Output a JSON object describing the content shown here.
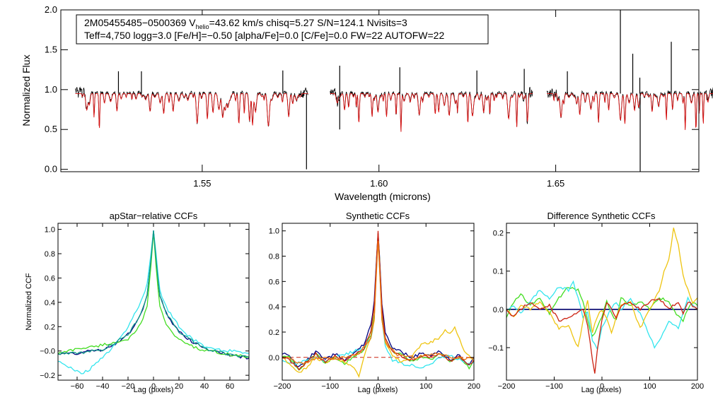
{
  "header": {
    "line1_prefix": "2M05455485−0500369  V",
    "line1_sub": "helio",
    "line1_suffix": "=43.62 km/s  chisq=5.27  S/N=124.1  Nvisits=3",
    "line2": "Teff=4,750 logg=3.0 [Fe/H]=−0.50 [alpha/Fe]=0.0 [C/Fe]=0.0 FW=22 AUTOFW=22"
  },
  "colors": {
    "observed": "#000000",
    "model": "#dd1111",
    "navy": "#00007f",
    "green": "#44dd22",
    "cyan": "#33e5ee",
    "teal": "#119988",
    "gold": "#eec411",
    "red_ccf": "#cc2211",
    "orange": "#ee7711"
  },
  "chart_data": [
    {
      "id": "spectrum",
      "type": "line",
      "title": "",
      "xlabel": "Wavelength (microns)",
      "ylabel": "Normalized Flux",
      "xlim": [
        1.51,
        1.6905
      ],
      "ylim": [
        -0.03,
        2.0
      ],
      "xticks": [
        1.55,
        1.6,
        1.65
      ],
      "xtick_labels": [
        "1.55",
        "1.60",
        "1.65"
      ],
      "yticks": [
        0.0,
        0.5,
        1.0,
        1.5,
        2.0
      ],
      "ytick_labels": [
        "0.0",
        "0.5",
        "1.0",
        "1.5",
        "2.0"
      ],
      "chip_ranges": [
        [
          1.5141,
          1.58
        ],
        [
          1.5862,
          1.6435
        ],
        [
          1.6475,
          1.6955
        ]
      ],
      "continuum_level": 0.95,
      "series": [
        {
          "name": "Observed spectrum",
          "color_key": "observed"
        },
        {
          "name": "Best-fit model",
          "color_key": "model"
        }
      ],
      "notable_features": [
        {
          "x": 1.5263,
          "y": 1.23
        },
        {
          "x": 1.5328,
          "y": 1.23
        },
        {
          "x": 1.5728,
          "y": 1.24
        },
        {
          "x": 1.5889,
          "y": 1.3
        },
        {
          "x": 1.6059,
          "y": 1.28
        },
        {
          "x": 1.6277,
          "y": 1.24
        },
        {
          "x": 1.6411,
          "y": 1.26
        },
        {
          "x": 1.6533,
          "y": 1.23
        },
        {
          "x": 1.6683,
          "y": 2.0
        },
        {
          "x": 1.6718,
          "y": 1.45
        },
        {
          "x": 1.6827,
          "y": 1.6
        },
        {
          "x": 1.6738,
          "y": 1.15
        },
        {
          "x": 1.5795,
          "y": 0.0
        },
        {
          "x": 1.6739,
          "y": -0.03
        },
        {
          "x": 1.5889,
          "y": 0.5
        }
      ]
    },
    {
      "id": "apstar-ccf",
      "type": "line",
      "title": "apStar−relative CCFs",
      "xlabel": "Lag (pixels)",
      "ylabel": "Normalized CCF",
      "xlim": [
        -75,
        75
      ],
      "ylim": [
        -0.24,
        1.05
      ],
      "xticks": [
        -60,
        -40,
        -20,
        0,
        20,
        40,
        60
      ],
      "xtick_labels": [
        "−60",
        "−40",
        "−20",
        "0",
        "20",
        "40",
        "60"
      ],
      "yticks": [
        -0.2,
        0.0,
        0.2,
        0.4,
        0.6,
        0.8,
        1.0
      ],
      "ytick_labels": [
        "−0.2",
        "−0.0",
        "0.2",
        "0.4",
        "0.6",
        "0.8",
        "1.0"
      ],
      "series": [
        {
          "name": "navy",
          "color_key": "navy",
          "x": [
            -75,
            -70,
            -60,
            -50,
            -40,
            -30,
            -20,
            -15,
            -10,
            -5,
            -2,
            0,
            2,
            5,
            10,
            15,
            20,
            30,
            40,
            50,
            60,
            70,
            75
          ],
          "y": [
            -0.02,
            -0.02,
            -0.02,
            0.0,
            0.01,
            0.06,
            0.14,
            0.2,
            0.3,
            0.45,
            0.75,
            0.99,
            0.75,
            0.46,
            0.31,
            0.22,
            0.16,
            0.08,
            0.02,
            0.0,
            -0.04,
            -0.05,
            -0.06
          ]
        },
        {
          "name": "green",
          "color_key": "green",
          "x": [
            -75,
            -70,
            -60,
            -50,
            -40,
            -30,
            -20,
            -15,
            -10,
            -5,
            -2,
            0,
            2,
            5,
            10,
            15,
            20,
            30,
            40,
            50,
            60,
            70,
            75
          ],
          "y": [
            -0.02,
            -0.01,
            0.02,
            0.03,
            0.05,
            0.07,
            0.1,
            0.14,
            0.22,
            0.36,
            0.7,
            0.98,
            0.7,
            0.36,
            0.22,
            0.14,
            0.1,
            0.04,
            0.0,
            -0.01,
            -0.03,
            -0.04,
            -0.05
          ]
        },
        {
          "name": "cyan",
          "color_key": "cyan",
          "x": [
            -75,
            -70,
            -65,
            -60,
            -55,
            -50,
            -45,
            -40,
            -30,
            -20,
            -10,
            -5,
            -2,
            0,
            2,
            5,
            10,
            20,
            30,
            40,
            50,
            60,
            70,
            75
          ],
          "y": [
            -0.08,
            -0.1,
            -0.14,
            -0.17,
            -0.18,
            -0.15,
            -0.1,
            -0.05,
            0.05,
            0.2,
            0.4,
            0.55,
            0.8,
            0.99,
            0.8,
            0.5,
            0.36,
            0.2,
            0.1,
            0.04,
            0.01,
            0.0,
            -0.01,
            -0.02
          ]
        },
        {
          "name": "teal",
          "color_key": "teal",
          "x": [
            -75,
            -60,
            -40,
            -20,
            -10,
            -5,
            -2,
            0,
            2,
            5,
            10,
            20,
            40,
            60,
            75
          ],
          "y": [
            -0.02,
            -0.02,
            0.01,
            0.13,
            0.3,
            0.46,
            0.75,
            0.99,
            0.75,
            0.46,
            0.31,
            0.16,
            0.02,
            -0.03,
            -0.05
          ]
        }
      ]
    },
    {
      "id": "synthetic-ccf",
      "type": "line",
      "title": "Synthetic CCFs",
      "xlabel": "Lag (pixels)",
      "ylabel": "",
      "xlim": [
        -200,
        200
      ],
      "ylim": [
        -0.18,
        1.06
      ],
      "xticks": [
        -200,
        -100,
        0,
        100,
        200
      ],
      "xtick_labels": [
        "−200",
        "−100",
        "0",
        "100",
        "200"
      ],
      "yticks": [
        0.0,
        0.2,
        0.4,
        0.6,
        0.8,
        1.0
      ],
      "ytick_labels": [
        "0.0",
        "0.2",
        "0.4",
        "0.6",
        "0.8",
        "1.0"
      ],
      "zero_line": {
        "y": 0.0,
        "style": "dashed",
        "color_key": "red_ccf"
      },
      "series": [
        {
          "name": "navy",
          "color_key": "navy",
          "x": [
            -200,
            -185,
            -165,
            -150,
            -130,
            -110,
            -90,
            -70,
            -50,
            -30,
            -15,
            -8,
            -3,
            0,
            3,
            8,
            15,
            30,
            50,
            70,
            90,
            110,
            130,
            150,
            170,
            190,
            200
          ],
          "y": [
            0.03,
            0.01,
            -0.08,
            -0.03,
            0.05,
            -0.02,
            0.03,
            -0.02,
            0.04,
            0.1,
            0.25,
            0.45,
            0.8,
            0.98,
            0.8,
            0.42,
            0.2,
            0.08,
            0.04,
            0.0,
            0.03,
            0.02,
            0.05,
            -0.02,
            0.02,
            -0.06,
            0.0
          ]
        },
        {
          "name": "green",
          "color_key": "green",
          "x": [
            -200,
            -185,
            -165,
            -150,
            -130,
            -110,
            -90,
            -70,
            -50,
            -30,
            -15,
            -8,
            -3,
            0,
            3,
            8,
            15,
            30,
            50,
            70,
            90,
            110,
            130,
            150,
            170,
            190,
            200
          ],
          "y": [
            0.01,
            0.0,
            -0.1,
            -0.04,
            0.03,
            -0.05,
            0.0,
            -0.05,
            0.01,
            0.06,
            0.18,
            0.35,
            0.78,
            0.97,
            0.78,
            0.33,
            0.15,
            0.05,
            0.02,
            -0.03,
            0.0,
            -0.02,
            0.03,
            -0.04,
            0.0,
            -0.08,
            -0.03
          ]
        },
        {
          "name": "cyan",
          "color_key": "cyan",
          "x": [
            -200,
            -185,
            -170,
            -150,
            -130,
            -110,
            -90,
            -70,
            -50,
            -30,
            -15,
            -8,
            -3,
            0,
            3,
            8,
            15,
            30,
            50,
            70,
            90,
            110,
            130,
            150,
            170,
            190,
            200
          ],
          "y": [
            -0.02,
            -0.04,
            -0.05,
            -0.02,
            0.0,
            -0.03,
            0.0,
            0.02,
            0.05,
            0.08,
            0.15,
            0.3,
            0.74,
            0.95,
            0.72,
            0.3,
            0.08,
            -0.02,
            -0.05,
            -0.06,
            -0.08,
            -0.05,
            0.0,
            0.02,
            -0.02,
            -0.05,
            -0.04
          ]
        },
        {
          "name": "gold",
          "color_key": "gold",
          "x": [
            -200,
            -185,
            -165,
            -150,
            -130,
            -110,
            -90,
            -70,
            -50,
            -40,
            -30,
            -15,
            -8,
            -3,
            0,
            3,
            8,
            15,
            30,
            50,
            70,
            90,
            110,
            130,
            140,
            150,
            160,
            170,
            180,
            190,
            200
          ],
          "y": [
            0.0,
            -0.05,
            -0.12,
            -0.08,
            0.0,
            -0.04,
            0.0,
            -0.04,
            -0.08,
            -0.15,
            0.0,
            0.15,
            0.3,
            0.74,
            0.96,
            0.74,
            0.3,
            0.12,
            0.02,
            -0.04,
            0.0,
            0.1,
            0.12,
            0.16,
            0.22,
            0.18,
            0.24,
            0.14,
            0.05,
            0.02,
            -0.03
          ]
        },
        {
          "name": "red",
          "color_key": "red_ccf",
          "x": [
            -200,
            -185,
            -165,
            -150,
            -130,
            -110,
            -90,
            -70,
            -50,
            -30,
            -15,
            -8,
            -3,
            0,
            3,
            8,
            15,
            30,
            50,
            70,
            90,
            110,
            130,
            150,
            170,
            190,
            200
          ],
          "y": [
            0.0,
            -0.02,
            -0.09,
            -0.04,
            0.03,
            -0.04,
            0.01,
            -0.03,
            0.02,
            0.07,
            0.2,
            0.4,
            0.78,
            1.0,
            0.78,
            0.38,
            0.15,
            0.04,
            0.01,
            -0.02,
            0.01,
            0.0,
            0.03,
            -0.03,
            0.01,
            -0.06,
            -0.02
          ]
        },
        {
          "name": "orange",
          "color_key": "orange",
          "x": [
            -200,
            -160,
            -120,
            -80,
            -40,
            -15,
            -8,
            -3,
            0,
            3,
            8,
            15,
            40,
            80,
            120,
            160,
            200
          ],
          "y": [
            0.01,
            -0.05,
            0.0,
            -0.01,
            0.03,
            0.15,
            0.32,
            0.7,
            0.92,
            0.7,
            0.3,
            0.12,
            0.02,
            0.0,
            0.03,
            0.0,
            -0.01
          ]
        }
      ]
    },
    {
      "id": "difference-ccf",
      "type": "line",
      "title": "Difference Synthetic CCFs",
      "xlabel": "Lag (pixels)",
      "ylabel": "",
      "xlim": [
        -200,
        200
      ],
      "ylim": [
        -0.185,
        0.225
      ],
      "xticks": [
        -200,
        -100,
        0,
        100,
        200
      ],
      "xtick_labels": [
        "−200",
        "−100",
        "0",
        "100",
        "200"
      ],
      "yticks": [
        -0.1,
        0.0,
        0.1,
        0.2
      ],
      "ytick_labels": [
        "−0.1",
        "0.0",
        "0.1",
        "0.2"
      ],
      "zero_line": {
        "y": 0.0,
        "style": "solid",
        "color_key": "observed"
      },
      "series": [
        {
          "name": "navy",
          "color_key": "navy",
          "x": [
            -200,
            200
          ],
          "y": [
            0.0,
            0.0
          ]
        },
        {
          "name": "green",
          "color_key": "green",
          "x": [
            -200,
            -185,
            -170,
            -150,
            -130,
            -110,
            -90,
            -70,
            -50,
            -40,
            -30,
            -20,
            -10,
            0,
            10,
            20,
            30,
            40,
            60,
            80,
            100,
            120,
            140,
            160,
            170,
            180,
            190,
            200
          ],
          "y": [
            -0.02,
            0.02,
            0.04,
            0.01,
            0.03,
            -0.01,
            0.03,
            0.06,
            0.05,
            0.02,
            -0.03,
            -0.07,
            -0.05,
            -0.02,
            0.02,
            -0.01,
            -0.03,
            0.03,
            0.01,
            0.02,
            0.0,
            0.03,
            0.02,
            -0.02,
            -0.03,
            0.0,
            0.02,
            0.01
          ]
        },
        {
          "name": "cyan",
          "color_key": "cyan",
          "x": [
            -200,
            -185,
            -170,
            -150,
            -130,
            -110,
            -90,
            -70,
            -60,
            -50,
            -40,
            -30,
            -20,
            -10,
            0,
            10,
            20,
            30,
            40,
            60,
            80,
            100,
            110,
            120,
            140,
            160,
            170,
            180,
            190,
            200
          ],
          "y": [
            0.0,
            0.01,
            -0.01,
            0.02,
            0.05,
            0.03,
            0.06,
            0.05,
            0.07,
            0.03,
            -0.02,
            -0.01,
            -0.08,
            -0.1,
            -0.05,
            -0.02,
            0.0,
            0.02,
            0.0,
            0.03,
            -0.01,
            -0.07,
            -0.1,
            -0.08,
            -0.03,
            -0.05,
            -0.01,
            0.03,
            0.01,
            0.0
          ]
        },
        {
          "name": "gold",
          "color_key": "gold",
          "x": [
            -200,
            -185,
            -170,
            -150,
            -130,
            -110,
            -90,
            -70,
            -50,
            -40,
            -30,
            -20,
            -10,
            0,
            10,
            20,
            30,
            40,
            60,
            80,
            100,
            120,
            130,
            140,
            150,
            160,
            170,
            180,
            190,
            200
          ],
          "y": [
            0.0,
            -0.02,
            0.01,
            0.0,
            0.02,
            -0.01,
            -0.05,
            -0.04,
            -0.1,
            -0.03,
            0.02,
            -0.06,
            -0.02,
            0.0,
            -0.02,
            -0.06,
            -0.02,
            0.01,
            0.02,
            -0.05,
            0.0,
            0.05,
            0.1,
            0.13,
            0.21,
            0.17,
            0.09,
            0.05,
            0.02,
            0.03
          ]
        },
        {
          "name": "red",
          "color_key": "red_ccf",
          "x": [
            -200,
            -185,
            -170,
            -150,
            -130,
            -110,
            -90,
            -70,
            -50,
            -40,
            -30,
            -20,
            -15,
            -10,
            0,
            10,
            20,
            30,
            40,
            60,
            80,
            100,
            120,
            140,
            160,
            170,
            180,
            190,
            200
          ],
          "y": [
            0.0,
            -0.02,
            0.0,
            0.02,
            0.0,
            0.01,
            -0.03,
            -0.02,
            -0.01,
            0.0,
            -0.04,
            -0.13,
            -0.17,
            -0.11,
            -0.03,
            0.02,
            0.0,
            -0.02,
            0.01,
            0.02,
            0.0,
            0.02,
            0.03,
            0.0,
            0.02,
            -0.01,
            0.02,
            0.01,
            0.0
          ]
        }
      ]
    }
  ]
}
